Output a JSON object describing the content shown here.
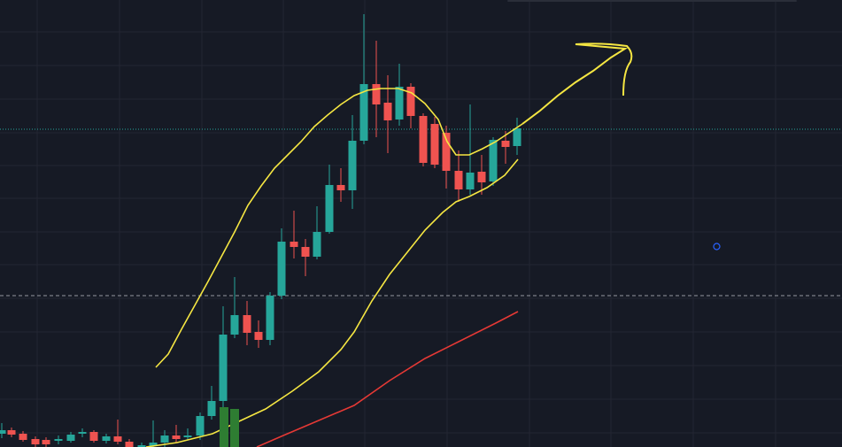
{
  "chart_data": {
    "type": "candlestick",
    "background": "#161a25",
    "grid": true,
    "grid_color": "#232632",
    "up_color": "#26a69a",
    "down_color": "#ef5350",
    "xlim": [
      0,
      951
    ],
    "ylim": [
      0,
      505
    ],
    "xticks": [
      42,
      135,
      228,
      320,
      412,
      505,
      598,
      690,
      783,
      876
    ],
    "yticks": [
      16,
      54,
      92,
      130,
      168,
      206,
      243,
      281,
      318,
      355,
      393,
      431,
      469
    ],
    "x": [
      2,
      13,
      26,
      40,
      52,
      66,
      80,
      93,
      106,
      120,
      133,
      146,
      160,
      173,
      186,
      199,
      212,
      226,
      239,
      252,
      265,
      279,
      292,
      305,
      318,
      332,
      345,
      358,
      372,
      385,
      398,
      411,
      425,
      438,
      451,
      464,
      478,
      491,
      504,
      518,
      531,
      544,
      557,
      571,
      584
    ],
    "open": [
      15,
      19,
      15,
      9,
      8,
      7,
      7,
      15,
      17,
      7,
      12,
      6,
      0,
      1,
      5,
      13,
      11,
      13,
      35,
      52,
      127,
      149,
      130,
      121,
      171,
      232,
      226,
      215,
      243,
      296,
      290,
      346,
      410,
      389,
      370,
      407,
      374,
      365,
      355,
      312,
      291,
      311,
      300,
      346,
      340
    ],
    "high": [
      27,
      22,
      18,
      12,
      11,
      13,
      17,
      21,
      19,
      15,
      31,
      9,
      5,
      30,
      19,
      25,
      21,
      39,
      69,
      159,
      192,
      165,
      143,
      175,
      247,
      267,
      235,
      272,
      319,
      315,
      375,
      489,
      459,
      420,
      433,
      411,
      377,
      373,
      363,
      335,
      387,
      330,
      350,
      357,
      372
    ],
    "low": [
      10,
      11,
      6,
      0,
      0,
      3,
      5,
      11,
      5,
      4,
      3,
      0,
      0,
      0,
      0,
      5,
      8,
      8,
      31,
      45,
      123,
      115,
      112,
      115,
      167,
      213,
      193,
      212,
      241,
      277,
      269,
      342,
      350,
      332,
      363,
      360,
      317,
      315,
      292,
      277,
      285,
      285,
      295,
      320,
      330
    ],
    "close": [
      19,
      14,
      8,
      3,
      3,
      9,
      14,
      17,
      7,
      12,
      6,
      0,
      2,
      5,
      13,
      9,
      13,
      35,
      52,
      127,
      149,
      129,
      121,
      171,
      232,
      226,
      215,
      243,
      296,
      290,
      346,
      410,
      387,
      369,
      407,
      374,
      321,
      319,
      312,
      291,
      310,
      299,
      347,
      339,
      360
    ],
    "lines": [
      {
        "color": "#f5e642",
        "x": [
          176,
          190,
          205,
          220,
          235,
          250,
          265,
          280,
          295,
          310,
          325,
          340,
          355,
          370,
          385,
          400,
          415,
          430,
          450,
          465,
          480,
          495,
          505,
          515,
          530,
          545,
          560,
          575,
          590
        ],
        "values": [
          90,
          105,
          133,
          160,
          187,
          215,
          243,
          273,
          295,
          315,
          330,
          345,
          362,
          375,
          387,
          397,
          403,
          405,
          405,
          400,
          388,
          370,
          345,
          330,
          330,
          337,
          345,
          355,
          365
        ]
      },
      {
        "color": "#f5e642",
        "x": [
          165,
          200,
          240,
          270,
          300,
          330,
          360,
          385,
          400,
          420,
          440,
          460,
          480,
          500,
          515,
          530,
          550,
          570,
          585
        ],
        "values": [
          0,
          5,
          15,
          29,
          43,
          63,
          85,
          110,
          130,
          165,
          195,
          220,
          245,
          265,
          277,
          283,
          293,
          307,
          325
        ]
      },
      {
        "color": "#e53935",
        "x": [
          290,
          320,
          360,
          400,
          440,
          480,
          520,
          560,
          585
        ],
        "values": [
          0,
          13,
          30,
          47,
          75,
          100,
          120,
          140,
          153
        ]
      }
    ],
    "price_lines": [
      {
        "value": 359,
        "color": "#26a69a",
        "style": "dotted"
      },
      {
        "value": 171,
        "color": "#9598a1",
        "style": "dashed"
      }
    ]
  }
}
